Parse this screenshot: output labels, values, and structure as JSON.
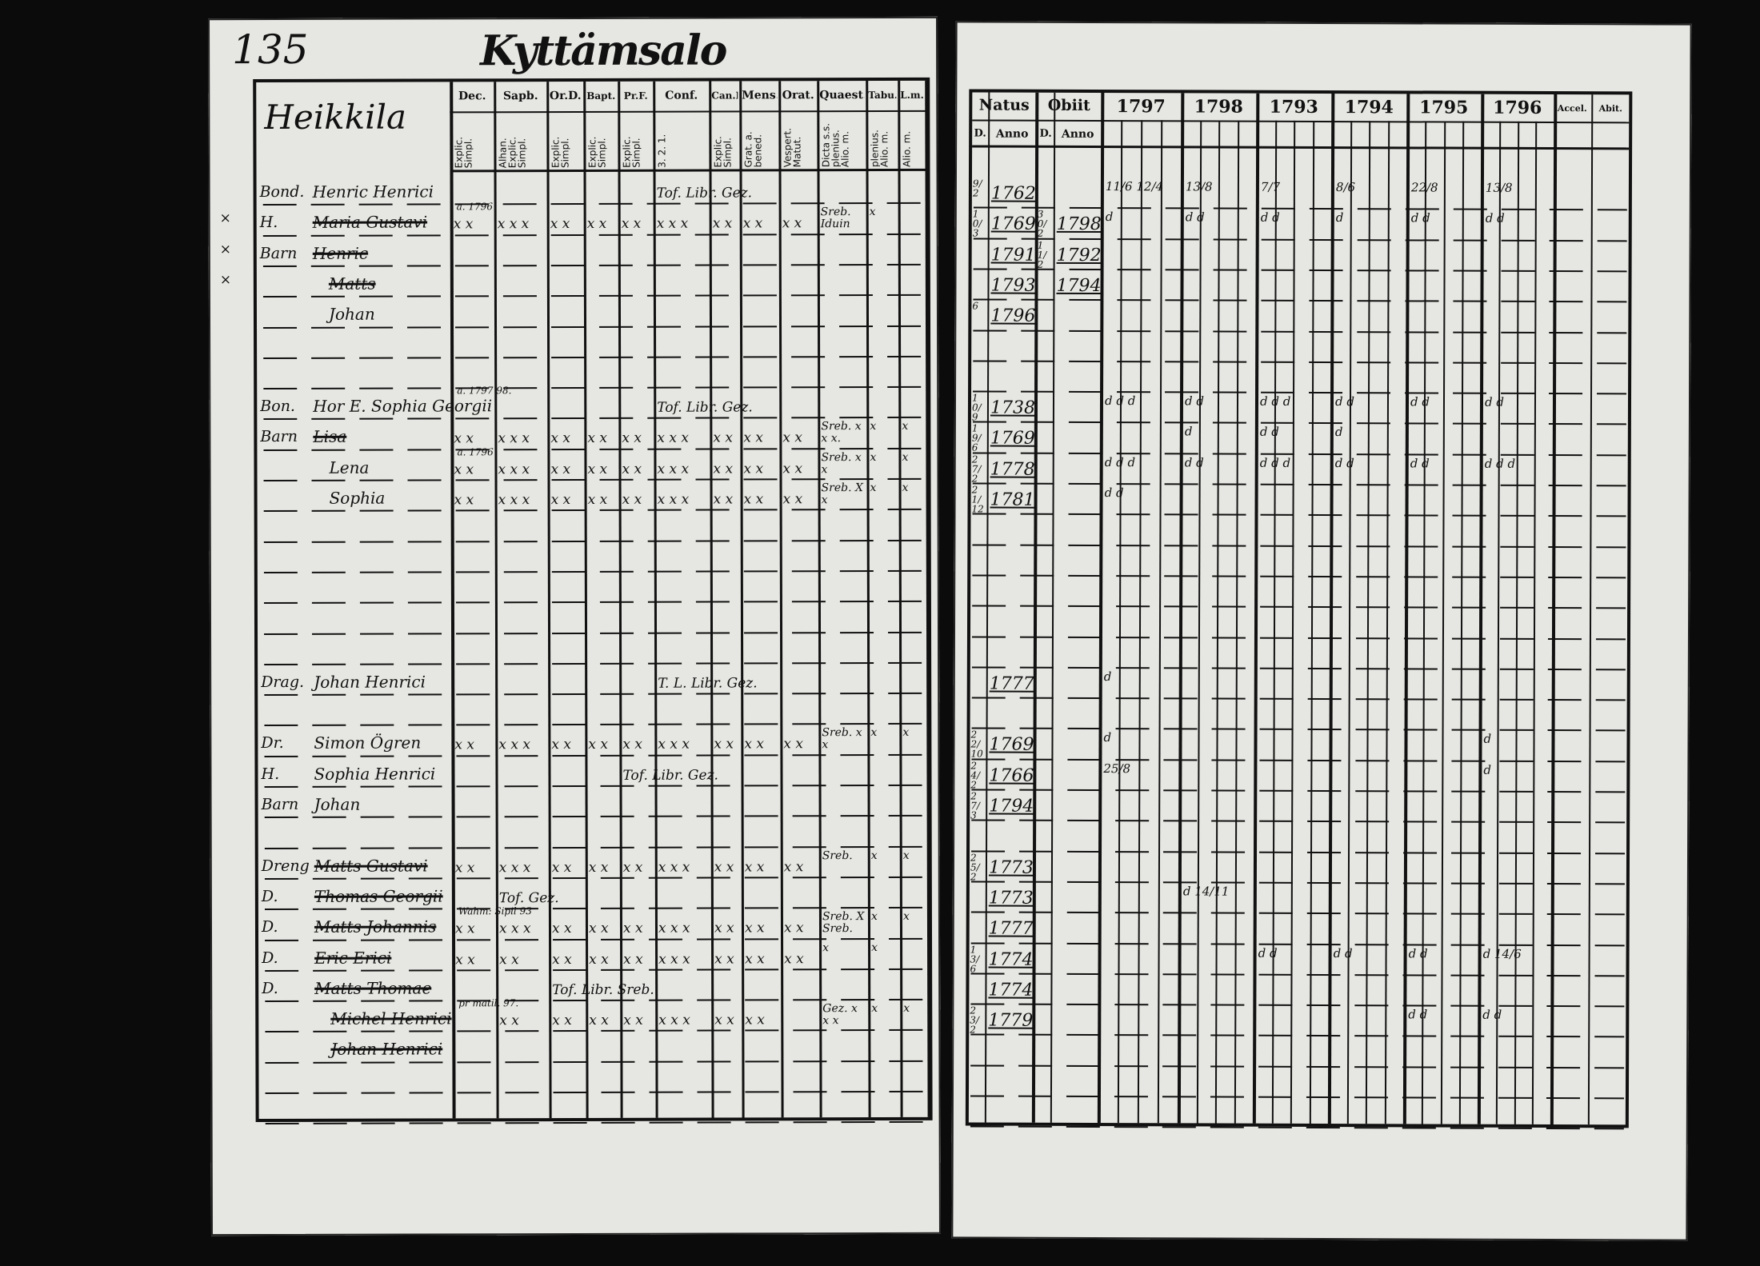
{
  "left_page": {
    "page_number": "135",
    "title": "Kyttämsalo",
    "village_label": "Heikkila",
    "columns": [
      {
        "label": "Dec.",
        "sub": "Explic. Simpl."
      },
      {
        "label": "Sapb.",
        "sub": "Alhan. Explic. Simpl."
      },
      {
        "label": "Or.D.",
        "sub": "Explic. Simpl."
      },
      {
        "label": "Bapt.",
        "sub": "Explic. Simpl."
      },
      {
        "label": "Pr.F.",
        "sub": "Explic. Simpl."
      },
      {
        "label": "Conf.",
        "sub": "3. 2. 1."
      },
      {
        "label": "Can.D.",
        "sub": "Explic. Simpl."
      },
      {
        "label": "Mens.",
        "sub": "Grat. a. bened."
      },
      {
        "label": "Orat.",
        "sub": "Vespert. Matut."
      },
      {
        "label": "Quaest.",
        "sub": "Dicta s.s. plenius. Alio. m."
      },
      {
        "label": "Tabu.",
        "sub": "plenius. Alio. m."
      },
      {
        "label": "L.m.",
        "sub": "Alio. m."
      }
    ],
    "margin_marks": [
      "×",
      "×",
      "×"
    ]
  },
  "right_page": {
    "headers": {
      "natus": "Natus",
      "obiit": "Obiit",
      "d": "D.",
      "anno": "Anno",
      "years": [
        "1797",
        "1798",
        "1793",
        "1794",
        "1795",
        "1796"
      ],
      "accel": "Accel.",
      "abit": "Abit."
    }
  },
  "rows": [
    {
      "prefix": "Bond.",
      "name": "Henric Henrici",
      "marks": [
        "",
        "",
        "",
        "",
        "",
        "Tof. Libr. Gez.",
        "",
        "",
        "",
        "",
        "",
        ""
      ],
      "birth_day": "9/2",
      "birth_year": "1762",
      "year_notes": [
        "11/6  12/4",
        "13/8",
        "7/7",
        "8/6",
        "22/8",
        "13/8"
      ]
    },
    {
      "prefix": "H.",
      "name": "Maria Gustavi",
      "struck": true,
      "note": "a. 1796",
      "marks": [
        "x x",
        "x x x",
        "x x",
        "x x",
        "x x",
        "x x x",
        "x x",
        "x x",
        "x x",
        "Sreb. Iduin",
        "x",
        ""
      ],
      "birth_day": "10/3",
      "birth_year": "1769",
      "death_day": "30/2",
      "death_year": "1798",
      "year_notes": [
        "d",
        "d d",
        "d d",
        "d",
        "d d",
        "d d"
      ]
    },
    {
      "prefix": "Barn",
      "name": "Henric",
      "struck": true,
      "marks": [],
      "birth_year": "1791",
      "death_day": "11/2",
      "death_year": "1792"
    },
    {
      "name": "Matts",
      "struck": true,
      "marks": [],
      "birth_year": "1793",
      "death_year": "1794"
    },
    {
      "name": "Johan",
      "marks": [],
      "birth_day": "6",
      "birth_year": "1796"
    },
    {},
    {},
    {
      "prefix": "Bon.",
      "name": "Hor E. Sophia Georgii",
      "note": "a. 1797 98.",
      "marks": [
        "",
        "",
        "",
        "",
        "",
        "Tof. Libr. Gez.",
        "",
        "",
        "",
        "",
        "",
        ""
      ],
      "birth_day": "10/9",
      "birth_year": "1738",
      "year_notes": [
        "d d d",
        "d d",
        "d d d",
        "d d",
        "d d",
        "d d"
      ]
    },
    {
      "prefix": "Barn",
      "name": "Lisa",
      "struck": true,
      "marks": [
        "x x",
        "x x x",
        "x x",
        "x x",
        "x x",
        "x x x",
        "x x",
        "x x",
        "x x",
        "Sreb. x x x.",
        "x",
        "x"
      ],
      "birth_day": "19/6",
      "birth_year": "1769",
      "year_notes": [
        "",
        "d",
        "d d",
        "d",
        "",
        " "
      ]
    },
    {
      "name": "Lena",
      "note": "a. 1796",
      "marks": [
        "x x",
        "x x x",
        "x x",
        "x x",
        "x x",
        "x x x",
        "x x",
        "x x",
        "x x",
        "Sreb. x x",
        "x",
        "x"
      ],
      "birth_day": "27/2",
      "birth_year": "1778",
      "year_notes": [
        "d d d",
        "d d",
        "d d d",
        "d d",
        "d d",
        "d d d"
      ]
    },
    {
      "name": "Sophia",
      "marks": [
        "x x",
        "x x x",
        "x x",
        "x x",
        "x x",
        "x x x",
        "x x",
        "x x",
        "x x",
        "Sreb. X x",
        "x",
        "x"
      ],
      "birth_day": "21/12",
      "birth_year": "1781",
      "year_notes": [
        "d d",
        "",
        "",
        "",
        "",
        ""
      ]
    },
    {},
    {},
    {},
    {},
    {},
    {
      "prefix": "Drag.",
      "name": "Johan Henrici",
      "marks": [
        "",
        "",
        "",
        "",
        "",
        "T. L. Libr. Gez.",
        "",
        "",
        "",
        "",
        "",
        ""
      ],
      "birth_year": "1777",
      "year_notes": [
        "d",
        "",
        "",
        "",
        "",
        ""
      ]
    },
    {},
    {
      "prefix": "Dr.",
      "name": "Simon Ögren",
      "marks": [
        "x x",
        "x x x",
        "x x",
        "x x",
        "x x",
        "x x x",
        "x x",
        "x x",
        "x x",
        "Sreb. x x",
        "x",
        "x"
      ],
      "birth_day": "22/10",
      "birth_year": "1769",
      "year_notes": [
        "d",
        "",
        "",
        "",
        "",
        "d"
      ]
    },
    {
      "prefix": "H.",
      "name": "Sophia Henrici",
      "marks": [
        "",
        "",
        "",
        "",
        "Tof. Libr. Gez.",
        "",
        "",
        "",
        "",
        "",
        "",
        ""
      ],
      "birth_day": "24/2",
      "birth_year": "1766",
      "year_notes": [
        "25/8",
        "",
        "",
        "",
        "",
        "d"
      ]
    },
    {
      "prefix": "Barn",
      "name": "Johan",
      "marks": [],
      "birth_day": "27/3",
      "birth_year": "1794"
    },
    {},
    {
      "prefix": "Dreng",
      "name": "Matts Gustavi",
      "struck": true,
      "marks": [
        "x x",
        "x x x",
        "x x",
        "x x",
        "x x",
        "x x x",
        "x x",
        "x x",
        "x x",
        "Sreb.",
        "x",
        "x"
      ],
      "birth_day": "25/2",
      "birth_year": "1773"
    },
    {
      "prefix": "D.",
      "name": "Thomas Georgii",
      "struck": true,
      "marks": [
        "",
        "Tof. Gez.",
        "",
        "",
        "",
        "",
        "",
        "",
        "",
        "",
        "",
        ""
      ],
      "birth_year": "1773",
      "year_notes": [
        "",
        "d 14/11",
        "",
        "",
        "",
        ""
      ]
    },
    {
      "prefix": "D.",
      "name": "Matts Johannis",
      "struck": true,
      "note": "Wahm: Sipil 93",
      "marks": [
        "x x",
        "x x x",
        "x x",
        "x x",
        "x x",
        "x x x",
        "x x",
        "x x",
        "x x",
        "Sreb. X Sreb.",
        "x",
        "x"
      ],
      "birth_year": "1777"
    },
    {
      "prefix": "D.",
      "name": "Eric Erici",
      "struck": true,
      "marks": [
        "x x",
        "x x",
        "x x",
        "x x",
        "x x",
        "x x x",
        "x x",
        "x x",
        "x x",
        "x",
        "x",
        ""
      ],
      "birth_day": "13/6",
      "birth_year": "1774",
      "year_notes": [
        "",
        "",
        "d d",
        "d d",
        "d d",
        "d 14/6"
      ]
    },
    {
      "prefix": "D.",
      "name": "Matts Thomae",
      "struck": true,
      "marks": [
        "",
        "",
        "Tof. Libr. Sreb.",
        "",
        "",
        "",
        "",
        "",
        "",
        "",
        "",
        ""
      ],
      "birth_year": "1774"
    },
    {
      "name": "Michel Henrici",
      "struck": true,
      "note": "pr matil. 97.",
      "marks": [
        "",
        "x x",
        "x x",
        "x x",
        "x x",
        "x x x",
        "x x",
        "x x",
        "",
        "Gez. x x x",
        "x",
        "x"
      ],
      "birth_day": "23/2",
      "birth_year": "1779",
      "year_notes": [
        "",
        "",
        "",
        "",
        "d d",
        "d d"
      ]
    },
    {
      "name": "Johan Henrici",
      "struck": true,
      "marks": []
    },
    {},
    {}
  ],
  "colors": {
    "paper": "#e6e6e2",
    "ink": "#111111",
    "background": "#0b0b0b"
  }
}
